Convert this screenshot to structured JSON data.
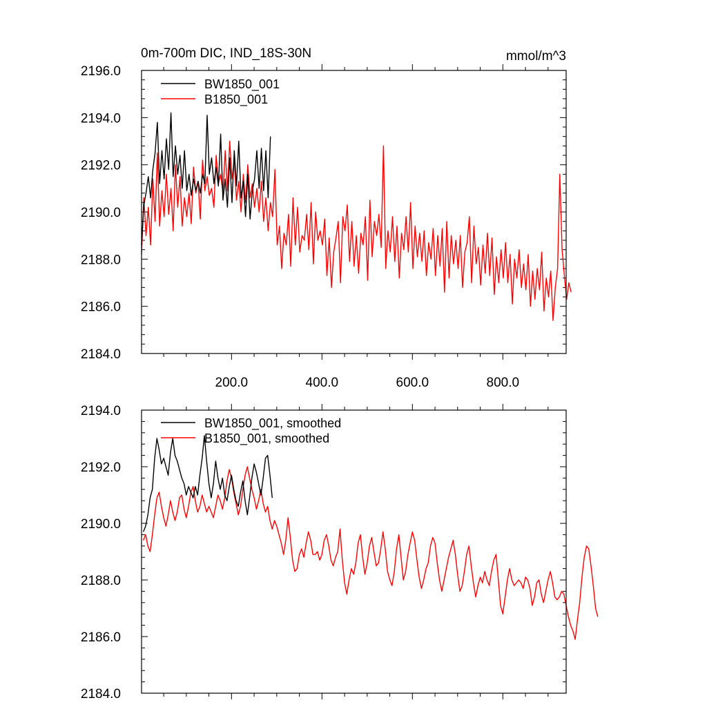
{
  "chart_data": [
    {
      "type": "line",
      "title": "0m-700m DIC, IND_18S-30N",
      "units": "mmol/m^3",
      "xlim": [
        1,
        940
      ],
      "ylim": [
        2184,
        2196
      ],
      "xticks": [
        200,
        400,
        600,
        800
      ],
      "xtick_labels": [
        "200.0",
        "400.0",
        "600.0",
        "800.0"
      ],
      "yticks": [
        2184,
        2186,
        2188,
        2190,
        2192,
        2194,
        2196
      ],
      "ytick_labels": [
        "2184.0",
        "2186.0",
        "2188.0",
        "2190.0",
        "2192.0",
        "2194.0",
        "2196.0"
      ],
      "legend_position": "top-left",
      "series": [
        {
          "name": "BW1850_001",
          "color": "#000000",
          "x_start": 1,
          "x_step": 5,
          "values": [
            2188.6,
            2190.3,
            2190.8,
            2191.5,
            2190.6,
            2191.8,
            2192.5,
            2193.8,
            2191.2,
            2192.6,
            2191.4,
            2193.1,
            2191.8,
            2194.2,
            2191.5,
            2192.8,
            2191.6,
            2192.4,
            2191.0,
            2192.6,
            2190.9,
            2191.6,
            2190.7,
            2191.4,
            2190.9,
            2191.3,
            2190.8,
            2191.6,
            2191.2,
            2194.1,
            2191.6,
            2192.3,
            2191.2,
            2191.9,
            2191.1,
            2193.3,
            2190.5,
            2191.4,
            2190.2,
            2192.3,
            2190.4,
            2192.6,
            2191.1,
            2193.0,
            2190.6,
            2191.3,
            2189.8,
            2191.6,
            2189.7,
            2190.9,
            2191.4,
            2192.6,
            2191.0,
            2192.7,
            2190.9,
            2192.6,
            2190.6,
            2193.2
          ]
        },
        {
          "name": "B1850_001",
          "color": "#ff0000",
          "x_start": 1,
          "x_step": 5,
          "values": [
            2188.2,
            2190.6,
            2189.0,
            2190.2,
            2188.6,
            2191.4,
            2189.6,
            2192.5,
            2189.4,
            2190.9,
            2189.8,
            2191.6,
            2189.9,
            2191.0,
            2189.2,
            2192.0,
            2190.2,
            2191.5,
            2189.4,
            2190.6,
            2189.8,
            2190.8,
            2189.5,
            2191.9,
            2190.8,
            2191.3,
            2189.7,
            2192.2,
            2190.9,
            2191.5,
            2190.7,
            2191.0,
            2190.2,
            2192.4,
            2191.2,
            2191.6,
            2190.8,
            2192.6,
            2190.9,
            2193.0,
            2191.4,
            2192.2,
            2190.5,
            2191.3,
            2190.0,
            2191.6,
            2190.4,
            2192.0,
            2190.6,
            2191.2,
            2190.2,
            2191.0,
            2190.0,
            2191.3,
            2189.6,
            2190.6,
            2189.2,
            2190.4,
            2189.8,
            2191.8,
            2188.6,
            2189.4,
            2187.6,
            2189.1,
            2188.6,
            2189.9,
            2187.7,
            2190.6,
            2188.6,
            2190.2,
            2188.3,
            2189.0,
            2188.8,
            2189.9,
            2188.4,
            2190.4,
            2187.8,
            2190.0,
            2188.8,
            2189.2,
            2188.6,
            2189.7,
            2187.3,
            2188.9,
            2186.8,
            2188.3,
            2188.9,
            2189.6,
            2187.0,
            2189.8,
            2189.2,
            2190.3,
            2187.9,
            2189.6,
            2187.7,
            2189.0,
            2187.4,
            2189.1,
            2188.6,
            2189.8,
            2187.1,
            2190.5,
            2188.1,
            2189.6,
            2189.0,
            2189.9,
            2188.5,
            2192.8,
            2187.6,
            2189.2,
            2188.3,
            2189.8,
            2187.9,
            2189.4,
            2187.2,
            2189.1,
            2188.4,
            2189.8,
            2188.3,
            2190.4,
            2187.6,
            2189.4,
            2188.1,
            2189.1,
            2187.9,
            2189.2,
            2187.3,
            2188.7,
            2188.0,
            2189.3,
            2187.3,
            2189.0,
            2187.7,
            2189.3,
            2186.6,
            2189.6,
            2187.2,
            2189.0,
            2187.8,
            2188.8,
            2187.6,
            2189.0,
            2186.8,
            2188.3,
            2188.7,
            2189.8,
            2187.0,
            2189.4,
            2187.8,
            2188.5,
            2186.9,
            2188.6,
            2187.4,
            2189.1,
            2187.3,
            2188.9,
            2186.5,
            2188.1,
            2187.0,
            2188.4,
            2187.2,
            2188.7,
            2187.0,
            2188.2,
            2186.1,
            2188.0,
            2187.2,
            2188.4,
            2186.8,
            2187.8,
            2186.7,
            2188.2,
            2186.0,
            2187.5,
            2186.3,
            2187.6,
            2186.7,
            2188.3,
            2185.8,
            2187.2,
            2186.4,
            2187.5,
            2185.4,
            2186.8,
            2187.6,
            2191.6,
            2188.4,
            2187.3,
            2186.3,
            2187.0,
            2186.6
          ]
        }
      ]
    },
    {
      "type": "line",
      "xlim": [
        1,
        940
      ],
      "ylim": [
        2184,
        2194
      ],
      "xticks": [
        200,
        400,
        600,
        800
      ],
      "yticks": [
        2184,
        2186,
        2188,
        2190,
        2192,
        2194
      ],
      "ytick_labels": [
        "2184.0",
        "2186.0",
        "2188.0",
        "2190.0",
        "2192.0",
        "2194.0"
      ],
      "legend_position": "top-left",
      "series": [
        {
          "name": "BW1850_001, smoothed",
          "color": "#000000",
          "x_start": 5,
          "x_step": 5,
          "values": [
            2189.7,
            2189.9,
            2190.3,
            2190.9,
            2191.2,
            2192.3,
            2193.0,
            2192.6,
            2192.1,
            2192.3,
            2192.0,
            2191.7,
            2192.5,
            2193.0,
            2192.4,
            2192.2,
            2191.9,
            2191.6,
            2191.4,
            2191.0,
            2191.3,
            2191.1,
            2190.9,
            2191.3,
            2191.0,
            2191.7,
            2192.3,
            2193.1,
            2192.2,
            2191.4,
            2190.9,
            2191.4,
            2192.2,
            2191.6,
            2191.2,
            2191.6,
            2191.0,
            2190.8,
            2191.3,
            2191.7,
            2191.2,
            2190.8,
            2190.6,
            2191.1,
            2191.5,
            2190.8,
            2190.3,
            2190.9,
            2191.6,
            2192.1,
            2191.8,
            2191.4,
            2191.0,
            2191.6,
            2192.3,
            2192.4,
            2191.7,
            2190.9
          ]
        },
        {
          "name": "B1850_001, smoothed",
          "color": "#ff0000",
          "x_start": 5,
          "x_step": 5,
          "values": [
            2189.4,
            2189.6,
            2189.2,
            2189.0,
            2189.6,
            2190.3,
            2190.9,
            2191.1,
            2190.6,
            2190.2,
            2189.9,
            2190.3,
            2190.8,
            2190.4,
            2190.1,
            2190.4,
            2190.9,
            2191.0,
            2190.5,
            2190.2,
            2190.6,
            2191.1,
            2191.3,
            2190.8,
            2190.4,
            2190.6,
            2191.0,
            2190.7,
            2190.4,
            2190.6,
            2190.4,
            2190.2,
            2190.6,
            2191.0,
            2190.8,
            2190.5,
            2190.9,
            2191.5,
            2191.9,
            2191.6,
            2191.1,
            2190.7,
            2190.3,
            2190.6,
            2191.2,
            2191.7,
            2192.0,
            2191.6,
            2191.2,
            2190.9,
            2190.5,
            2190.8,
            2191.2,
            2190.7,
            2190.4,
            2190.6,
            2190.1,
            2189.8,
            2190.1,
            2189.9,
            2189.6,
            2189.3,
            2188.9,
            2189.4,
            2190.2,
            2189.5,
            2188.7,
            2188.3,
            2188.4,
            2188.9,
            2189.1,
            2188.8,
            2189.3,
            2189.7,
            2189.4,
            2188.9,
            2188.9,
            2189.0,
            2188.7,
            2188.9,
            2189.4,
            2189.6,
            2189.2,
            2188.7,
            2188.5,
            2188.8,
            2189.0,
            2189.8,
            2188.7,
            2187.9,
            2187.5,
            2188.0,
            2188.4,
            2188.2,
            2188.6,
            2189.3,
            2189.6,
            2188.8,
            2188.2,
            2188.6,
            2189.2,
            2189.5,
            2189.0,
            2188.5,
            2188.6,
            2189.1,
            2189.7,
            2189.1,
            2188.3,
            2188.0,
            2187.8,
            2188.3,
            2189.1,
            2189.6,
            2188.8,
            2188.0,
            2188.3,
            2188.9,
            2189.3,
            2189.7,
            2189.4,
            2188.7,
            2188.1,
            2187.7,
            2188.0,
            2188.4,
            2188.6,
            2189.2,
            2189.5,
            2189.3,
            2188.6,
            2188.0,
            2187.6,
            2188.0,
            2188.4,
            2188.8,
            2189.1,
            2189.4,
            2188.9,
            2188.2,
            2187.6,
            2187.8,
            2188.3,
            2188.9,
            2189.2,
            2188.5,
            2187.9,
            2187.4,
            2187.8,
            2188.1,
            2187.9,
            2188.3,
            2188.0,
            2187.8,
            2188.3,
            2188.7,
            2188.9,
            2188.0,
            2187.1,
            2186.8,
            2187.4,
            2188.0,
            2188.4,
            2188.0,
            2187.8,
            2187.9,
            2188.0,
            2187.9,
            2187.7,
            2188.1,
            2188.0,
            2187.7,
            2187.1,
            2187.4,
            2187.9,
            2188.0,
            2187.5,
            2187.2,
            2187.6,
            2188.0,
            2188.3,
            2187.9,
            2187.4,
            2187.3,
            2187.4,
            2187.6,
            2187.5,
            2187.1,
            2186.7,
            2186.4,
            2186.2,
            2185.9,
            2186.6,
            2187.2,
            2188.1,
            2188.8,
            2189.2,
            2189.1,
            2188.5,
            2187.8,
            2187.0,
            2186.7
          ]
        }
      ]
    }
  ]
}
